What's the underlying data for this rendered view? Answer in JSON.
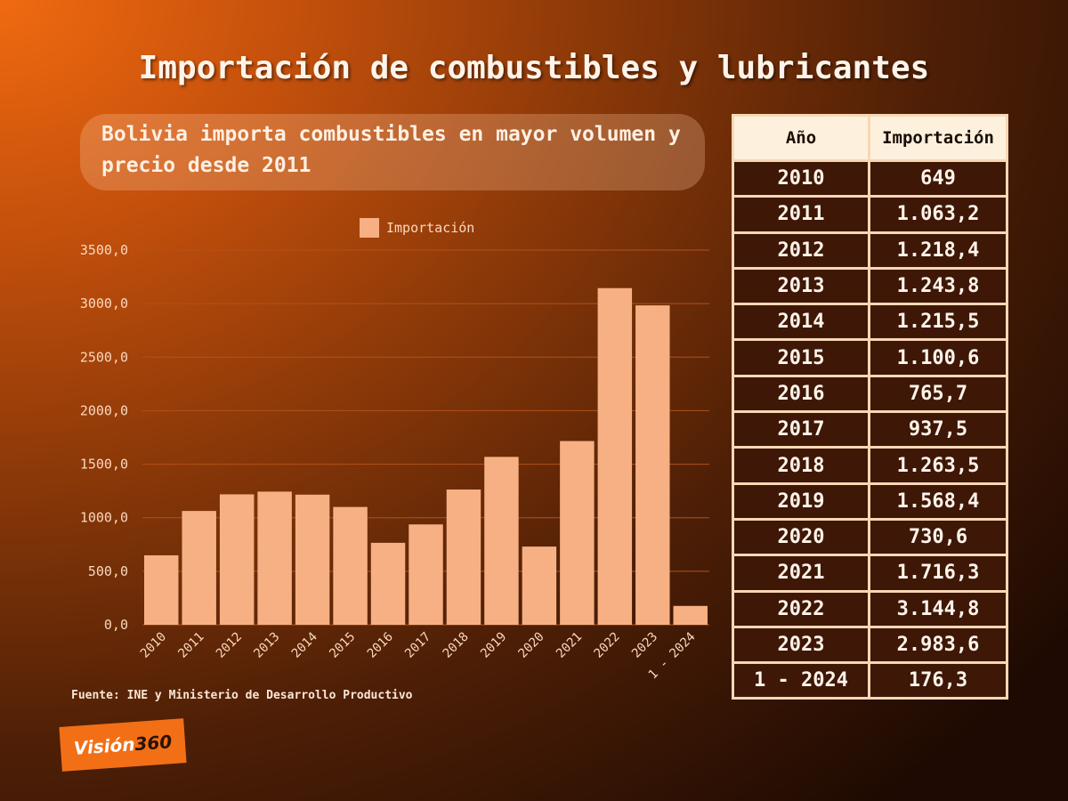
{
  "title": "Importación de combustibles y lubricantes",
  "subtitle": "Bolivia importa combustibles en mayor volumen y precio desde 2011",
  "source": "Fuente: INE y Ministerio de Desarrollo Productivo",
  "logo": {
    "part1": "Visión",
    "part2": "360"
  },
  "table": {
    "headers": [
      "Año",
      "Importación"
    ],
    "rows": [
      [
        "2010",
        "649"
      ],
      [
        "2011",
        "1.063,2"
      ],
      [
        "2012",
        "1.218,4"
      ],
      [
        "2013",
        "1.243,8"
      ],
      [
        "2014",
        "1.215,5"
      ],
      [
        "2015",
        "1.100,6"
      ],
      [
        "2016",
        "765,7"
      ],
      [
        "2017",
        "937,5"
      ],
      [
        "2018",
        "1.263,5"
      ],
      [
        "2019",
        "1.568,4"
      ],
      [
        "2020",
        "730,6"
      ],
      [
        "2021",
        "1.716,3"
      ],
      [
        "2022",
        "3.144,8"
      ],
      [
        "2023",
        "2.983,6"
      ],
      [
        "1 - 2024",
        "176,3"
      ]
    ]
  },
  "chart_data": {
    "type": "bar",
    "title": "Importación de combustibles y lubricantes",
    "categories": [
      "2010",
      "2011",
      "2012",
      "2013",
      "2014",
      "2015",
      "2016",
      "2017",
      "2018",
      "2019",
      "2020",
      "2021",
      "2022",
      "2023",
      "1 - 2024"
    ],
    "series": [
      {
        "name": "Importación",
        "values": [
          649,
          1063.2,
          1218.4,
          1243.8,
          1215.5,
          1100.6,
          765.7,
          937.5,
          1263.5,
          1568.4,
          730.6,
          1716.3,
          3144.8,
          2983.6,
          176.3
        ]
      }
    ],
    "yticks": [
      "0,0",
      "500,0",
      "1000,0",
      "1500,0",
      "2000,0",
      "2500,0",
      "3000,0",
      "3500,0"
    ],
    "ylim": [
      0,
      3500
    ],
    "legend": "top-center",
    "grid": true,
    "colors": {
      "bar": "#f6b083",
      "grid": "#b0521c",
      "tick": "#fbd8bd"
    }
  }
}
